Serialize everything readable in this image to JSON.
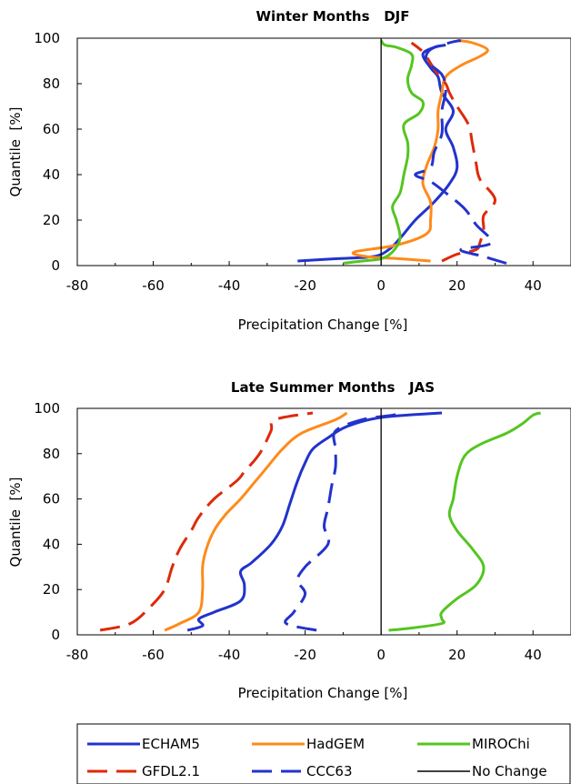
{
  "legend": [
    {
      "name": "ECHAM5",
      "color": "#2233cc",
      "dash": false
    },
    {
      "name": "HadGEM",
      "color": "#ff8a1a",
      "dash": false
    },
    {
      "name": "MIROChi",
      "color": "#55c520",
      "dash": false
    },
    {
      "name": "GFDL2.1",
      "color": "#dd2a0a",
      "dash": true
    },
    {
      "name": "CCC63",
      "color": "#2233cc",
      "dash": true
    },
    {
      "name": "No Change",
      "color": "#000000",
      "dash": false
    }
  ],
  "chart_data": [
    {
      "type": "line",
      "title": "Winter Months   DJF",
      "xlabel": "Precipitation Change [%]",
      "ylabel": "Quantile  [%]",
      "xlim": [
        -80,
        50
      ],
      "ylim": [
        0,
        100
      ],
      "xticks": [
        -80,
        -60,
        -40,
        -20,
        0,
        20,
        40
      ],
      "yticks": [
        0,
        20,
        40,
        60,
        80,
        100
      ],
      "series": [
        {
          "name": "ECHAM5",
          "points": [
            [
              -22,
              2
            ],
            [
              -12,
              3
            ],
            [
              -2,
              4
            ],
            [
              2,
              7
            ],
            [
              5,
              12
            ],
            [
              9,
              20
            ],
            [
              14,
              28
            ],
            [
              18,
              36
            ],
            [
              20,
              43
            ],
            [
              19,
              52
            ],
            [
              17,
              60
            ],
            [
              19,
              68
            ],
            [
              16,
              76
            ],
            [
              15,
              83
            ],
            [
              13,
              87
            ],
            [
              11,
              93
            ],
            [
              14,
              96
            ],
            [
              17,
              97
            ]
          ]
        },
        {
          "name": "HadGEM",
          "points": [
            [
              13,
              2
            ],
            [
              5,
              3
            ],
            [
              -4,
              4
            ],
            [
              -7,
              6
            ],
            [
              4,
              9
            ],
            [
              12,
              14
            ],
            [
              13,
              20
            ],
            [
              13,
              28
            ],
            [
              11,
              36
            ],
            [
              12,
              44
            ],
            [
              14,
              52
            ],
            [
              15,
              60
            ],
            [
              15,
              68
            ],
            [
              16,
              76
            ],
            [
              17,
              83
            ],
            [
              21,
              88
            ],
            [
              26,
              92
            ],
            [
              28,
              95
            ],
            [
              24,
              98
            ],
            [
              20,
              99
            ]
          ]
        },
        {
          "name": "MIROChi",
          "points": [
            [
              -10,
              1
            ],
            [
              -5,
              2
            ],
            [
              0,
              3
            ],
            [
              3,
              6
            ],
            [
              5,
              12
            ],
            [
              4,
              20
            ],
            [
              3,
              26
            ],
            [
              5,
              32
            ],
            [
              6,
              40
            ],
            [
              7,
              48
            ],
            [
              7,
              54
            ],
            [
              6,
              62
            ],
            [
              10,
              67
            ],
            [
              11,
              72
            ],
            [
              8,
              76
            ],
            [
              7,
              82
            ],
            [
              8,
              88
            ],
            [
              8,
              93
            ],
            [
              4,
              96
            ],
            [
              1,
              97
            ],
            [
              0,
              99
            ]
          ]
        },
        {
          "name": "GFDL2.1",
          "points": [
            [
              16,
              2
            ],
            [
              20,
              5
            ],
            [
              25,
              7
            ],
            [
              26,
              10
            ],
            [
              27,
              16
            ],
            [
              27,
              22
            ],
            [
              30,
              29
            ],
            [
              26,
              38
            ],
            [
              25,
              45
            ],
            [
              24,
              54
            ],
            [
              23,
              62
            ],
            [
              20,
              70
            ],
            [
              18,
              76
            ],
            [
              17,
              80
            ],
            [
              15,
              84
            ],
            [
              13,
              89
            ],
            [
              11,
              94
            ],
            [
              8,
              98
            ]
          ]
        },
        {
          "name": "CCC63",
          "points": [
            [
              33,
              1
            ],
            [
              27,
              4
            ],
            [
              21,
              7
            ],
            [
              29,
              10
            ],
            [
              25,
              18
            ],
            [
              22,
              25
            ],
            [
              17,
              32
            ],
            [
              13,
              37
            ],
            [
              9,
              40
            ],
            [
              13,
              43
            ],
            [
              14,
              50
            ],
            [
              16,
              58
            ],
            [
              16,
              68
            ],
            [
              17,
              77
            ],
            [
              16,
              84
            ],
            [
              12,
              90
            ],
            [
              13,
              95
            ],
            [
              18,
              98
            ],
            [
              21,
              99
            ]
          ]
        },
        {
          "name": "No Change",
          "points": [
            [
              0,
              0
            ],
            [
              0,
              100
            ]
          ]
        }
      ]
    },
    {
      "type": "line",
      "title": "Late Summer Months   JAS",
      "xlabel": "Precipitation Change [%]",
      "ylabel": "Quantile  [%]",
      "xlim": [
        -80,
        50
      ],
      "ylim": [
        0,
        100
      ],
      "xticks": [
        -80,
        -60,
        -40,
        -20,
        0,
        20,
        40
      ],
      "yticks": [
        0,
        20,
        40,
        60,
        80,
        100
      ],
      "series": [
        {
          "name": "ECHAM5",
          "points": [
            [
              -51,
              2
            ],
            [
              -47,
              4
            ],
            [
              -48,
              7
            ],
            [
              -44,
              10
            ],
            [
              -37,
              15
            ],
            [
              -36,
              22
            ],
            [
              -37,
              28
            ],
            [
              -34,
              32
            ],
            [
              -29,
              40
            ],
            [
              -26,
              48
            ],
            [
              -24,
              58
            ],
            [
              -22,
              68
            ],
            [
              -20,
              76
            ],
            [
              -18,
              82
            ],
            [
              -14,
              87
            ],
            [
              -9,
              92
            ],
            [
              0,
              96
            ],
            [
              16,
              98
            ]
          ]
        },
        {
          "name": "HadGEM",
          "points": [
            [
              -57,
              2
            ],
            [
              -53,
              5
            ],
            [
              -48,
              10
            ],
            [
              -47,
              20
            ],
            [
              -47,
              30
            ],
            [
              -46,
              38
            ],
            [
              -44,
              46
            ],
            [
              -41,
              53
            ],
            [
              -37,
              60
            ],
            [
              -34,
              66
            ],
            [
              -30,
              74
            ],
            [
              -26,
              82
            ],
            [
              -21,
              89
            ],
            [
              -12,
              95
            ],
            [
              -9,
              98
            ]
          ]
        },
        {
          "name": "MIROChi",
          "points": [
            [
              2,
              2
            ],
            [
              8,
              3
            ],
            [
              16,
              5
            ],
            [
              16,
              7
            ],
            [
              16,
              10
            ],
            [
              20,
              16
            ],
            [
              25,
              22
            ],
            [
              27,
              30
            ],
            [
              24,
              38
            ],
            [
              20,
              46
            ],
            [
              18,
              53
            ],
            [
              19,
              60
            ],
            [
              20,
              70
            ],
            [
              22,
              79
            ],
            [
              26,
              84
            ],
            [
              33,
              89
            ],
            [
              37,
              93
            ],
            [
              40,
              97
            ],
            [
              42,
              98
            ]
          ]
        },
        {
          "name": "GFDL2.1",
          "points": [
            [
              -74,
              2
            ],
            [
              -66,
              5
            ],
            [
              -61,
              12
            ],
            [
              -57,
              20
            ],
            [
              -55,
              30
            ],
            [
              -53,
              38
            ],
            [
              -50,
              46
            ],
            [
              -48,
              52
            ],
            [
              -44,
              60
            ],
            [
              -38,
              68
            ],
            [
              -36,
              72
            ],
            [
              -32,
              80
            ],
            [
              -29,
              90
            ],
            [
              -28,
              95
            ],
            [
              -18,
              98
            ]
          ]
        },
        {
          "name": "CCC63",
          "points": [
            [
              -17,
              2
            ],
            [
              -25,
              5
            ],
            [
              -23,
              10
            ],
            [
              -20,
              18
            ],
            [
              -22,
              24
            ],
            [
              -20,
              30
            ],
            [
              -14,
              40
            ],
            [
              -15,
              48
            ],
            [
              -14,
              56
            ],
            [
              -13,
              66
            ],
            [
              -12,
              74
            ],
            [
              -12,
              82
            ],
            [
              -12,
              90
            ],
            [
              -5,
              95
            ],
            [
              3,
              97
            ],
            [
              6,
              98
            ]
          ]
        },
        {
          "name": "No Change",
          "points": [
            [
              0,
              0
            ],
            [
              0,
              100
            ]
          ]
        }
      ]
    }
  ]
}
